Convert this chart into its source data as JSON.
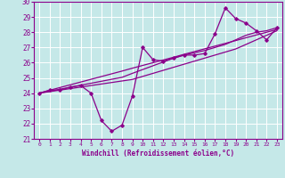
{
  "xlabel": "Windchill (Refroidissement éolien,°C)",
  "bg_color": "#c5e8e8",
  "line_color": "#8b008b",
  "grid_color": "#ffffff",
  "xlim": [
    -0.5,
    23.5
  ],
  "ylim": [
    21,
    30
  ],
  "yticks": [
    21,
    22,
    23,
    24,
    25,
    26,
    27,
    28,
    29,
    30
  ],
  "xticks": [
    0,
    1,
    2,
    3,
    4,
    5,
    6,
    7,
    8,
    9,
    10,
    11,
    12,
    13,
    14,
    15,
    16,
    17,
    18,
    19,
    20,
    21,
    22,
    23
  ],
  "series_jagged": [
    24.0,
    24.2,
    24.2,
    24.4,
    24.5,
    24.0,
    22.2,
    21.5,
    21.9,
    23.8,
    27.0,
    26.2,
    26.1,
    26.3,
    26.5,
    26.5,
    26.6,
    27.9,
    29.6,
    28.9,
    28.6,
    28.1,
    27.5,
    28.3
  ],
  "series_linear1": [
    24.0,
    24.19,
    24.37,
    24.55,
    24.73,
    24.91,
    25.09,
    25.27,
    25.45,
    25.64,
    25.82,
    26.0,
    26.18,
    26.36,
    26.55,
    26.73,
    26.91,
    27.09,
    27.27,
    27.45,
    27.64,
    27.82,
    28.0,
    28.18
  ],
  "series_linear2": [
    24.0,
    24.1,
    24.2,
    24.3,
    24.4,
    24.5,
    24.6,
    24.7,
    24.8,
    24.9,
    25.1,
    25.3,
    25.5,
    25.7,
    25.9,
    26.1,
    26.3,
    26.5,
    26.7,
    26.9,
    27.2,
    27.5,
    27.8,
    28.1
  ],
  "series_linear3": [
    24.0,
    24.13,
    24.26,
    24.39,
    24.52,
    24.65,
    24.78,
    24.91,
    25.04,
    25.3,
    25.55,
    25.8,
    26.05,
    26.3,
    26.5,
    26.65,
    26.8,
    27.0,
    27.2,
    27.5,
    27.8,
    28.0,
    28.1,
    28.3
  ]
}
